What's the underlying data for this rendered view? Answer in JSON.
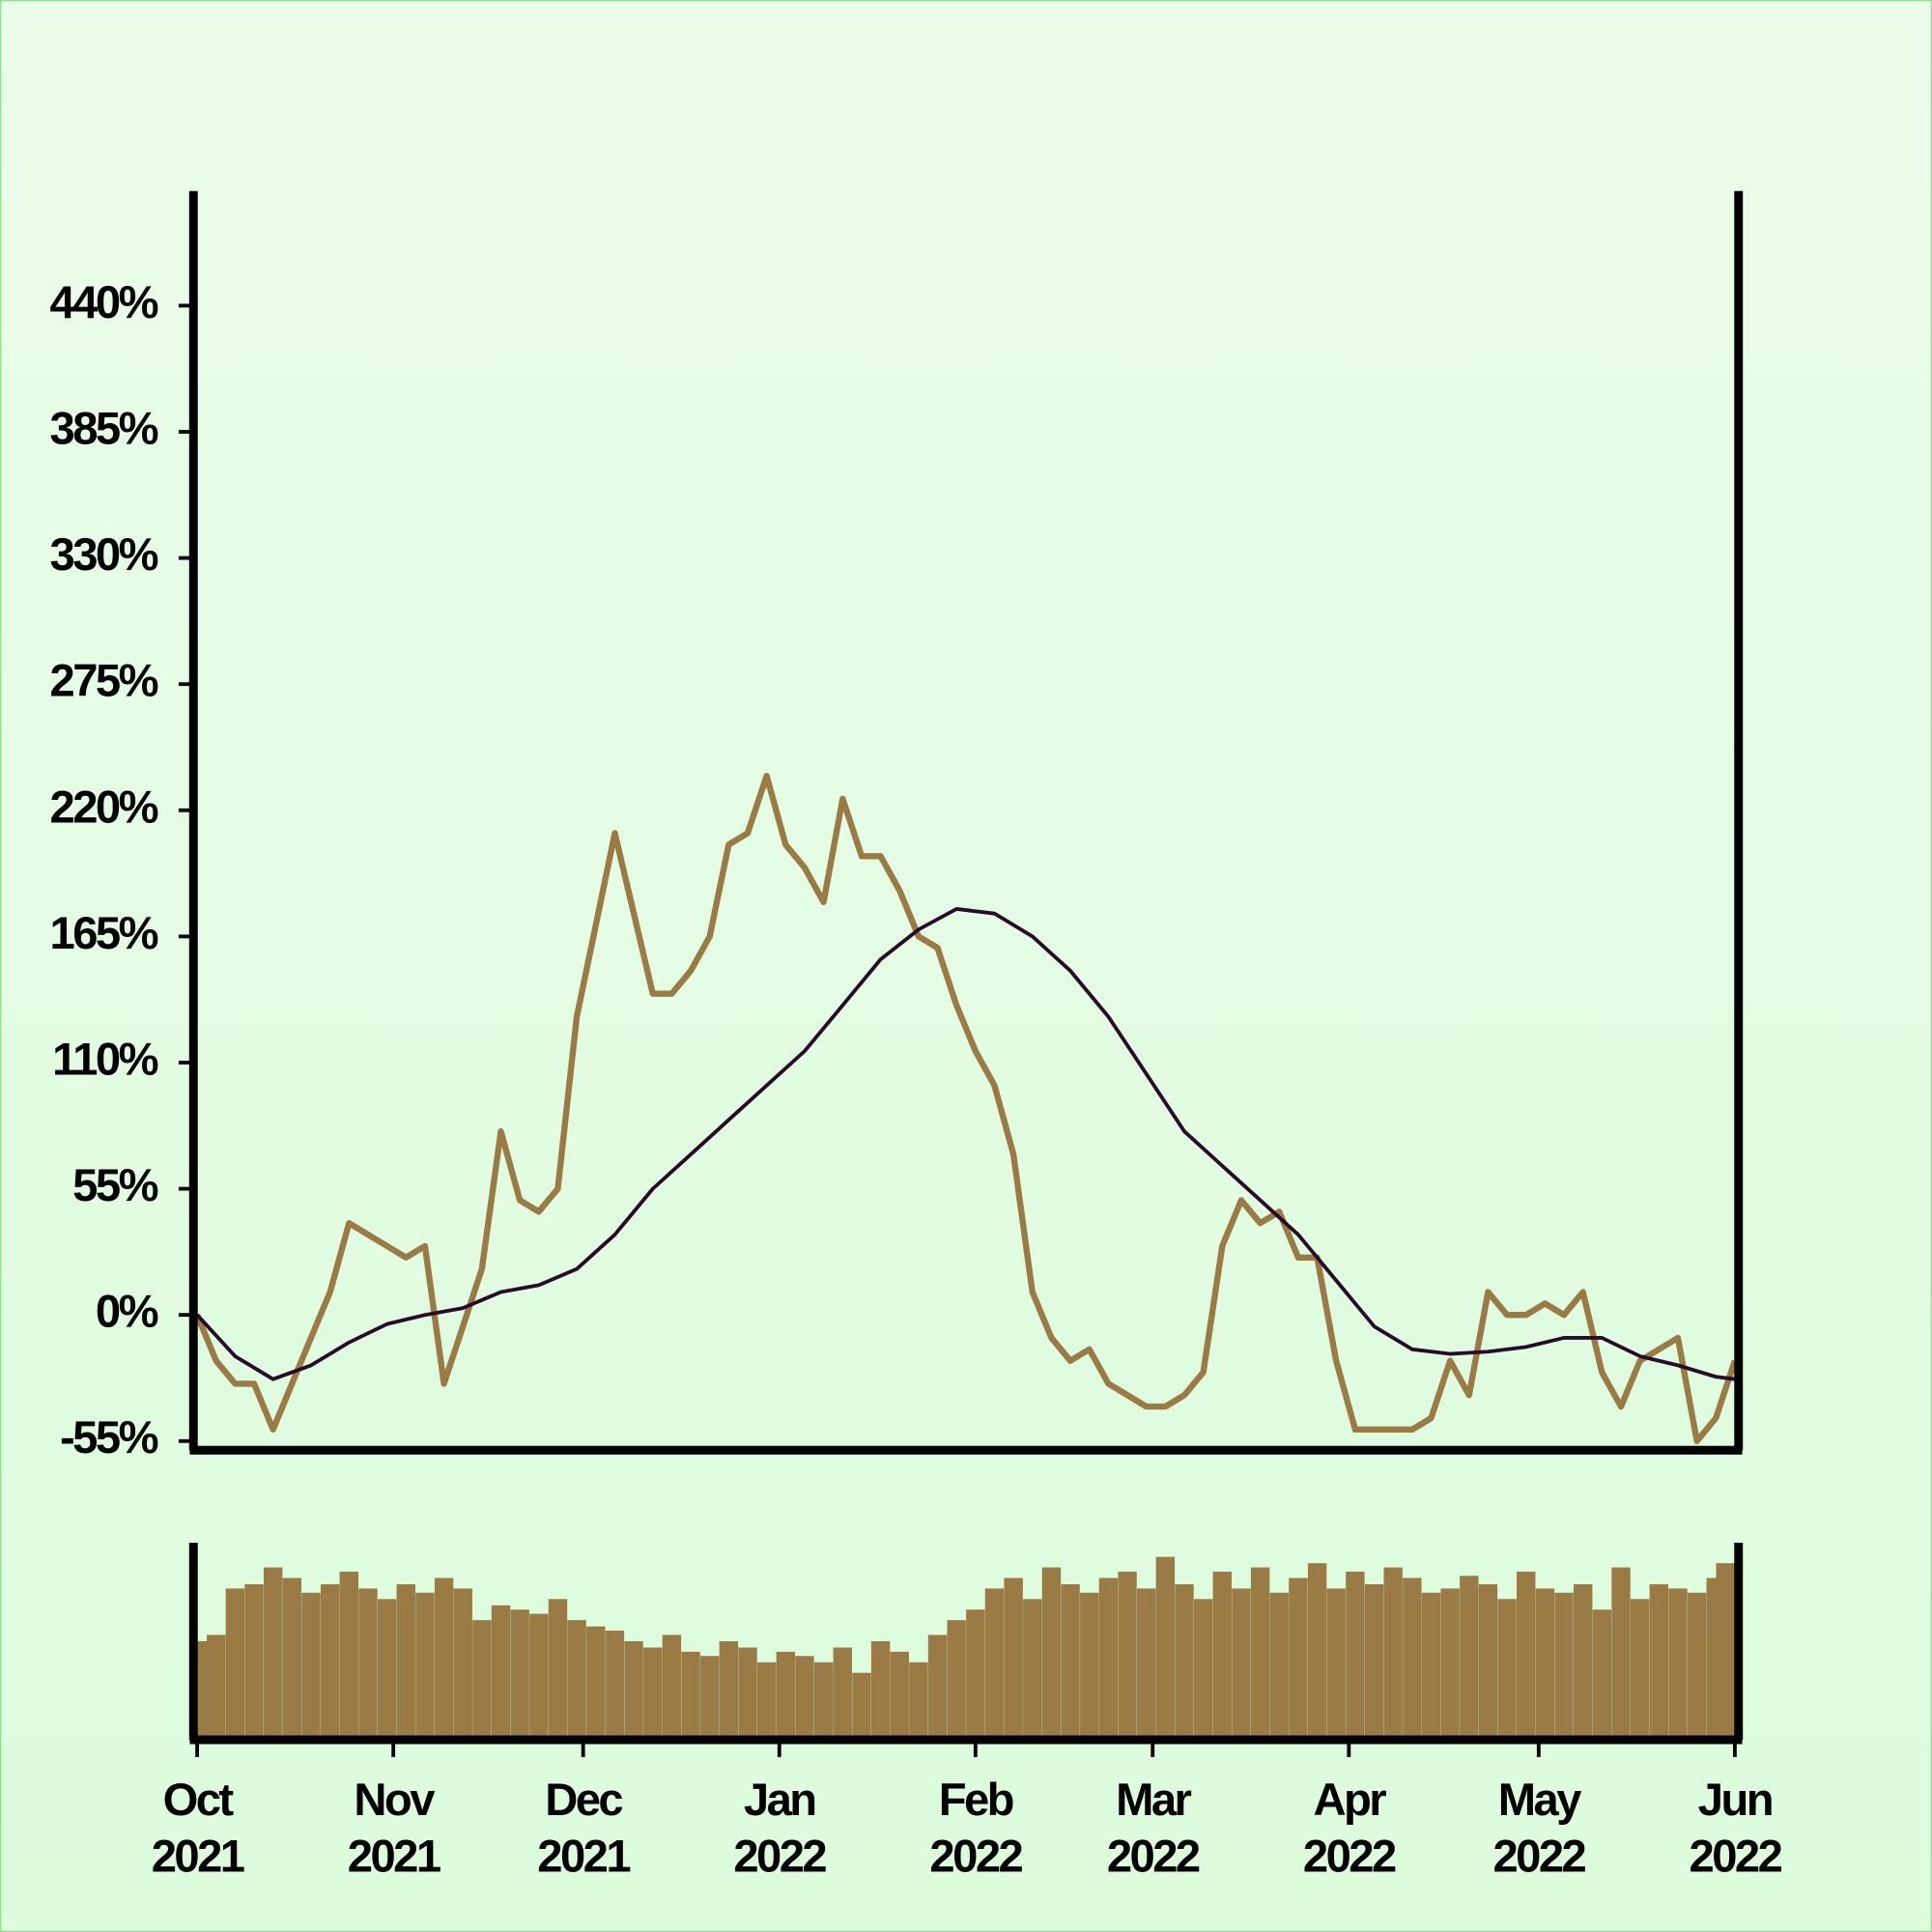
{
  "chart_data": [
    {
      "type": "line",
      "x": [
        0,
        3,
        6,
        9,
        12,
        15,
        18,
        21,
        24,
        27,
        30,
        33,
        36,
        39,
        42,
        45,
        48,
        51,
        54,
        57,
        60,
        63,
        66,
        69,
        72,
        75,
        78,
        81,
        84,
        87,
        90,
        93,
        96,
        99,
        102,
        105,
        108,
        111,
        114,
        117,
        120,
        123,
        126,
        129,
        132,
        135,
        138,
        141,
        144,
        147,
        150,
        153,
        156,
        159,
        162,
        165,
        168,
        171,
        174,
        177,
        180,
        183,
        186,
        189,
        192,
        195,
        198,
        201,
        204,
        207,
        210,
        213,
        216,
        219,
        222,
        225,
        228,
        231,
        234,
        237,
        240,
        243
      ],
      "xlim": [
        0,
        243
      ],
      "ylim": [
        -59,
        490
      ],
      "yticks": [
        {
          "value": -55,
          "label": "-55%"
        },
        {
          "value": 0,
          "label": "0%"
        },
        {
          "value": 55,
          "label": "55%"
        },
        {
          "value": 110,
          "label": "110%"
        },
        {
          "value": 165,
          "label": "165%"
        },
        {
          "value": 220,
          "label": "220%"
        },
        {
          "value": 275,
          "label": "275%"
        },
        {
          "value": 330,
          "label": "330%"
        },
        {
          "value": 385,
          "label": "385%"
        },
        {
          "value": 440,
          "label": "440%"
        }
      ],
      "series": [
        {
          "color": "#9a7b45",
          "values": [
            0,
            -20,
            -30,
            -30,
            -50,
            -30,
            -10,
            10,
            40,
            35,
            30,
            25,
            30,
            -30,
            -5,
            20,
            80,
            50,
            45,
            55,
            130,
            170,
            210,
            175,
            140,
            140,
            150,
            165,
            205,
            210,
            235,
            205,
            195,
            180,
            225,
            200,
            200,
            185,
            165,
            160,
            135,
            115,
            100,
            70,
            10,
            -10,
            -20,
            -15,
            -30,
            -35,
            -40,
            -40,
            -35,
            -25,
            30,
            50,
            40,
            45,
            25,
            25,
            -20,
            -50,
            -50,
            -50,
            -50,
            -45,
            -20,
            -35,
            10,
            0,
            0,
            5,
            0,
            10,
            -25,
            -40,
            -20,
            -15,
            -10,
            -55,
            -45,
            -20
          ]
        },
        {
          "color": "#2a0a2a",
          "x": [
            0,
            6,
            12,
            18,
            24,
            30,
            36,
            42,
            48,
            54,
            60,
            66,
            72,
            78,
            84,
            90,
            96,
            102,
            108,
            114,
            120,
            126,
            132,
            138,
            144,
            150,
            156,
            162,
            168,
            174,
            180,
            186,
            192,
            198,
            204,
            210,
            216,
            222,
            228,
            234,
            240,
            243
          ],
          "values": [
            0,
            -18,
            -28,
            -22,
            -12,
            -4,
            0,
            3,
            10,
            13,
            20,
            35,
            55,
            70,
            85,
            100,
            115,
            135,
            155,
            168,
            177,
            175,
            165,
            150,
            130,
            105,
            80,
            65,
            50,
            35,
            15,
            -5,
            -15,
            -17,
            -16,
            -14,
            -10,
            -10,
            -18,
            -22,
            -27,
            -28
          ]
        }
      ]
    },
    {
      "type": "bar",
      "x": [
        0,
        3,
        6,
        9,
        12,
        15,
        18,
        21,
        24,
        27,
        30,
        33,
        36,
        39,
        42,
        45,
        48,
        51,
        54,
        57,
        60,
        63,
        66,
        69,
        72,
        75,
        78,
        81,
        84,
        87,
        90,
        93,
        96,
        99,
        102,
        105,
        108,
        111,
        114,
        117,
        120,
        123,
        126,
        129,
        132,
        135,
        138,
        141,
        144,
        147,
        150,
        153,
        156,
        159,
        162,
        165,
        168,
        171,
        174,
        177,
        180,
        183,
        186,
        189,
        192,
        195,
        198,
        201,
        204,
        207,
        210,
        213,
        216,
        219,
        222,
        225,
        228,
        231,
        234,
        237,
        240,
        243
      ],
      "xlim": [
        0,
        243
      ],
      "ylim": [
        0,
        90
      ],
      "color": "#9a7b45",
      "values": [
        45,
        48,
        70,
        72,
        80,
        75,
        68,
        72,
        78,
        70,
        65,
        72,
        68,
        75,
        70,
        55,
        62,
        60,
        58,
        65,
        55,
        52,
        50,
        45,
        42,
        48,
        40,
        38,
        45,
        42,
        35,
        40,
        38,
        35,
        42,
        30,
        45,
        40,
        35,
        48,
        55,
        60,
        70,
        75,
        65,
        80,
        72,
        68,
        75,
        78,
        70,
        85,
        72,
        65,
        78,
        70,
        80,
        68,
        75,
        82,
        70,
        78,
        72,
        80,
        75,
        68,
        70,
        76,
        72,
        65,
        78,
        70,
        68,
        72,
        60,
        80,
        65,
        72,
        70,
        68,
        75,
        82
      ],
      "xticks": [
        {
          "value": 0,
          "label": "Oct 2021"
        },
        {
          "value": 31,
          "label": "Nov 2021"
        },
        {
          "value": 61,
          "label": "Dec 2021"
        },
        {
          "value": 92,
          "label": "Jan 2022"
        },
        {
          "value": 123,
          "label": "Feb 2022"
        },
        {
          "value": 151,
          "label": "Mar 2022"
        },
        {
          "value": 182,
          "label": "Apr 2022"
        },
        {
          "value": 212,
          "label": "May 2022"
        },
        {
          "value": 243,
          "label": "Jun 2022"
        }
      ]
    }
  ]
}
